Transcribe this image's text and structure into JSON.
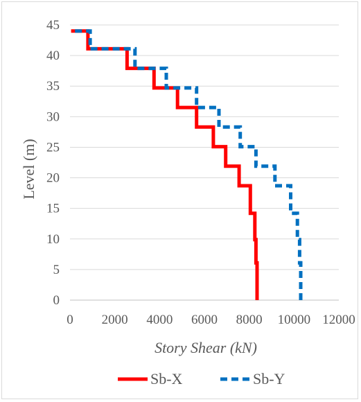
{
  "chart_data": {
    "type": "line",
    "xlabel": "Story Shear (kN)",
    "ylabel": "Level (m)",
    "xlim": [
      0,
      12000
    ],
    "ylim": [
      0,
      45
    ],
    "x_ticks": [
      0,
      2000,
      4000,
      6000,
      8000,
      10000,
      12000
    ],
    "y_ticks": [
      0,
      5,
      10,
      15,
      20,
      25,
      30,
      35,
      40,
      45
    ],
    "grid": "horizontal",
    "legend": "bottom",
    "series": [
      {
        "name": "Sb-X",
        "color": "#ff0000",
        "style": "solid",
        "points": [
          [
            8350,
            0
          ],
          [
            8350,
            6.1
          ],
          [
            8300,
            6.1
          ],
          [
            8300,
            9.9
          ],
          [
            8250,
            9.9
          ],
          [
            8250,
            14.2
          ],
          [
            8050,
            14.2
          ],
          [
            8050,
            18.7
          ],
          [
            7550,
            18.7
          ],
          [
            7550,
            21.9
          ],
          [
            6950,
            21.9
          ],
          [
            6950,
            25.1
          ],
          [
            6400,
            25.1
          ],
          [
            6400,
            28.3
          ],
          [
            5650,
            28.3
          ],
          [
            5650,
            31.5
          ],
          [
            4800,
            31.5
          ],
          [
            4800,
            34.7
          ],
          [
            3750,
            34.7
          ],
          [
            3750,
            37.9
          ],
          [
            2550,
            37.9
          ],
          [
            2550,
            41.1
          ],
          [
            800,
            41.1
          ],
          [
            800,
            44
          ],
          [
            50,
            44
          ]
        ]
      },
      {
        "name": "Sb-Y",
        "color": "#0070c0",
        "style": "dashed",
        "points": [
          [
            10300,
            0
          ],
          [
            10300,
            6.1
          ],
          [
            10250,
            6.1
          ],
          [
            10250,
            9.9
          ],
          [
            10150,
            9.9
          ],
          [
            10150,
            14.2
          ],
          [
            9850,
            14.2
          ],
          [
            9850,
            18.7
          ],
          [
            9150,
            18.7
          ],
          [
            9150,
            21.9
          ],
          [
            8300,
            21.9
          ],
          [
            8300,
            25.1
          ],
          [
            7600,
            25.1
          ],
          [
            7600,
            28.3
          ],
          [
            6650,
            28.3
          ],
          [
            6650,
            31.5
          ],
          [
            5650,
            31.5
          ],
          [
            5650,
            34.7
          ],
          [
            4300,
            34.7
          ],
          [
            4300,
            37.9
          ],
          [
            2900,
            37.9
          ],
          [
            2900,
            41.1
          ],
          [
            900,
            41.1
          ],
          [
            900,
            44
          ],
          [
            50,
            44
          ]
        ]
      }
    ]
  }
}
